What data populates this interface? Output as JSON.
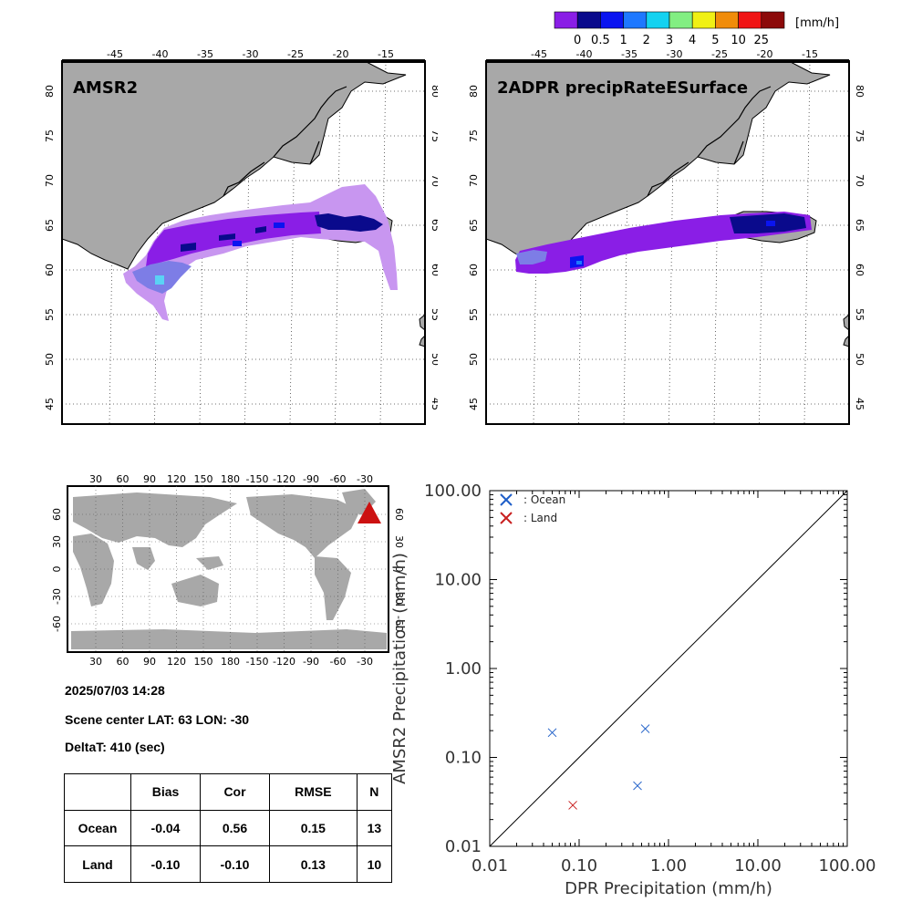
{
  "colorbar": {
    "unit": "[mm/h]",
    "labels": [
      "0",
      "0.5",
      "1",
      "2",
      "3",
      "4",
      "5",
      "10",
      "25"
    ],
    "colors": [
      "#8a1ee6",
      "#0a0a8c",
      "#0a14f0",
      "#1e78ff",
      "#14d2f0",
      "#82ee82",
      "#f0f014",
      "#f08c0a",
      "#f01414",
      "#8c0a0a"
    ]
  },
  "maps": [
    {
      "title": "AMSR2"
    },
    {
      "title": "2ADPR precipRateESurface"
    }
  ],
  "map_axes": {
    "lon_ticks": [
      "-45",
      "-40",
      "-35",
      "-30",
      "-25",
      "-20",
      "-15"
    ],
    "lat_ticks": [
      "80",
      "75",
      "70",
      "65",
      "60",
      "55",
      "50",
      "45"
    ]
  },
  "globe": {
    "top_lon_ticks": [
      "30",
      "60",
      "90",
      "120",
      "150",
      "180",
      "-150",
      "-120",
      "-90",
      "-60",
      "-30"
    ],
    "lat_ticks": [
      "60",
      "30",
      "0",
      "-30",
      "-60"
    ],
    "marker_color": "#cc1111"
  },
  "info": {
    "datetime": "2025/07/03 14:28",
    "scene_center": "Scene center LAT: 63   LON: -30",
    "delta_t": "DeltaT:  410 (sec)"
  },
  "stats_table": {
    "headers": [
      "",
      "Bias",
      "Cor",
      "RMSE",
      "N"
    ],
    "rows": [
      [
        "Ocean",
        "-0.04",
        "0.56",
        "0.15",
        "13"
      ],
      [
        "Land",
        "-0.10",
        "-0.10",
        "0.13",
        "10"
      ]
    ]
  },
  "chart_data": {
    "type": "scatter",
    "xlabel": "DPR Precipitation (mm/h)",
    "ylabel": "AMSR2 Precipitation (mm/h)",
    "x_scale": "log",
    "y_scale": "log",
    "xlim": [
      0.01,
      100
    ],
    "ylim": [
      0.01,
      100
    ],
    "x_tick_labels": [
      "0.01",
      "0.10",
      "1.00",
      "10.00",
      "100.00"
    ],
    "y_tick_labels": [
      "0.01",
      "0.10",
      "1.00",
      "10.00",
      "100.00"
    ],
    "grid": false,
    "legend": "top-left",
    "reference_line": "1:1 diagonal",
    "series": [
      {
        "name": ": Ocean",
        "color": "#1f5fc8",
        "marker": "x",
        "points": [
          [
            0.05,
            0.19
          ],
          [
            0.55,
            0.21
          ],
          [
            0.45,
            0.048
          ]
        ]
      },
      {
        "name": ": Land",
        "color": "#c82020",
        "marker": "x",
        "points": [
          [
            0.085,
            0.029
          ]
        ]
      }
    ]
  }
}
